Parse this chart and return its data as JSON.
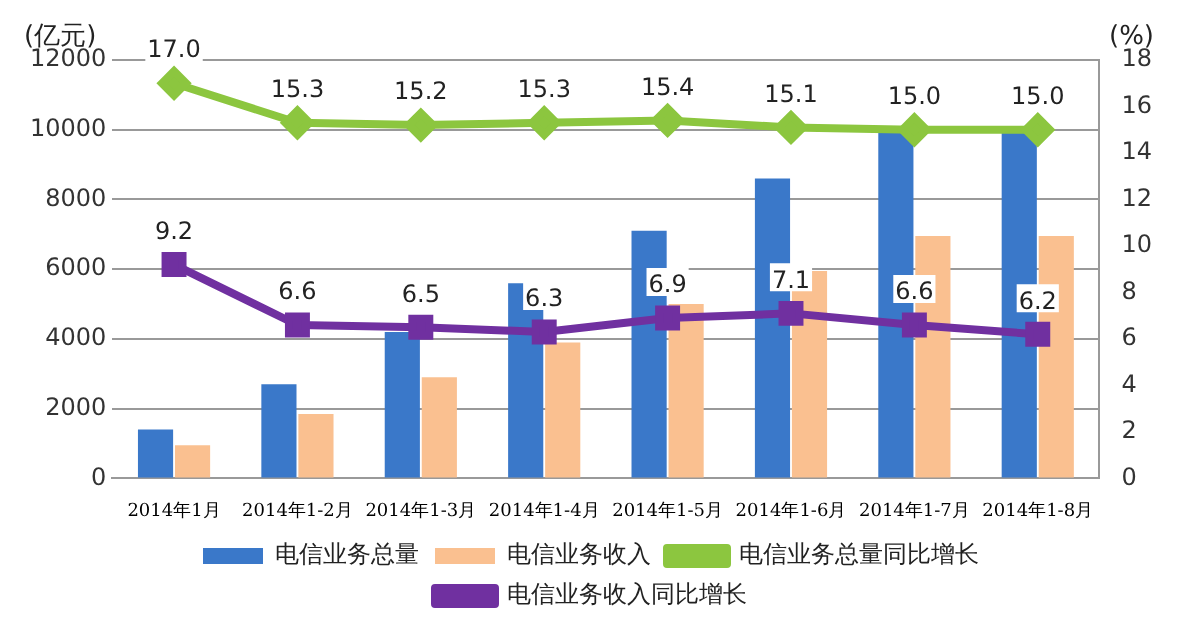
{
  "chart_data": {
    "type": "bar",
    "ylabel": "(亿元)",
    "y2label": "(%)",
    "categories": [
      "2014年1月",
      "2014年1-2月",
      "2014年1-3月",
      "2014年1-4月",
      "2014年1-5月",
      "2014年1-6月",
      "2014年1-7月",
      "2014年1-8月"
    ],
    "series": [
      {
        "name": "电信业务总量",
        "color": "#3a78c9",
        "values": [
          1400,
          2700,
          4200,
          5600,
          7100,
          8600,
          10000,
          10000
        ]
      },
      {
        "name": "电信业务收入",
        "color": "#fac090",
        "values": [
          950,
          1850,
          2900,
          3900,
          5000,
          5950,
          6950,
          6950
        ]
      },
      {
        "name": "电信业务总量同比增长",
        "type": "line",
        "axis": "y2",
        "marker": "diamond",
        "color": "#8cc63f",
        "values": [
          17.0,
          15.3,
          15.2,
          15.3,
          15.4,
          15.1,
          15.0,
          15.0
        ],
        "value_labels": [
          "17.0",
          "15.3",
          "15.2",
          "15.3",
          "15.4",
          "15.1",
          "15.0",
          "15.0"
        ]
      },
      {
        "name": "电信业务收入同比增长",
        "type": "line",
        "axis": "y2",
        "marker": "square",
        "color": "#7030a0",
        "values": [
          9.2,
          6.6,
          6.5,
          6.3,
          6.9,
          7.1,
          6.6,
          6.2
        ],
        "value_labels": [
          "9.2",
          "6.6",
          "6.5",
          "6.3",
          "6.9",
          "7.1",
          "6.6",
          "6.2"
        ]
      }
    ],
    "ylim": [
      0,
      12000
    ],
    "yticks": [
      0,
      2000,
      4000,
      6000,
      8000,
      10000,
      12000
    ],
    "y2lim": [
      0,
      18
    ],
    "y2ticks": [
      0,
      2,
      4,
      6,
      8,
      10,
      12,
      14,
      16,
      18
    ],
    "grid": "y",
    "legend": "bottom"
  }
}
